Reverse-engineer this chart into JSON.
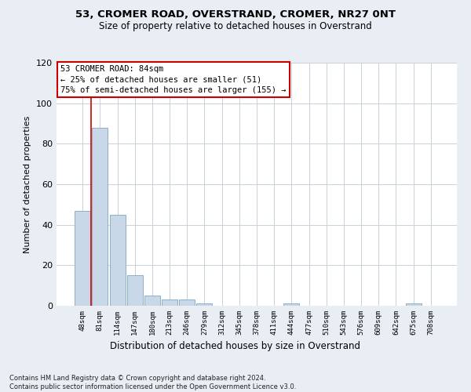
{
  "title1": "53, CROMER ROAD, OVERSTRAND, CROMER, NR27 0NT",
  "title2": "Size of property relative to detached houses in Overstrand",
  "xlabel": "Distribution of detached houses by size in Overstrand",
  "ylabel": "Number of detached properties",
  "categories": [
    "48sqm",
    "81sqm",
    "114sqm",
    "147sqm",
    "180sqm",
    "213sqm",
    "246sqm",
    "279sqm",
    "312sqm",
    "345sqm",
    "378sqm",
    "411sqm",
    "444sqm",
    "477sqm",
    "510sqm",
    "543sqm",
    "576sqm",
    "609sqm",
    "642sqm",
    "675sqm",
    "708sqm"
  ],
  "values": [
    47,
    88,
    45,
    15,
    5,
    3,
    3,
    1,
    0,
    0,
    0,
    0,
    1,
    0,
    0,
    0,
    0,
    0,
    0,
    1,
    0
  ],
  "bar_color": "#c8d8e8",
  "bar_edge_color": "#8ab0cc",
  "grid_color": "#c8d0d8",
  "vline_color": "#cc0000",
  "vline_x_index": 1,
  "annotation_box_text": "53 CROMER ROAD: 84sqm\n← 25% of detached houses are smaller (51)\n75% of semi-detached houses are larger (155) →",
  "ylim": [
    0,
    120
  ],
  "yticks": [
    0,
    20,
    40,
    60,
    80,
    100,
    120
  ],
  "footer": "Contains HM Land Registry data © Crown copyright and database right 2024.\nContains public sector information licensed under the Open Government Licence v3.0.",
  "bg_color": "#e8eef4",
  "plot_bg_color": "#ffffff"
}
